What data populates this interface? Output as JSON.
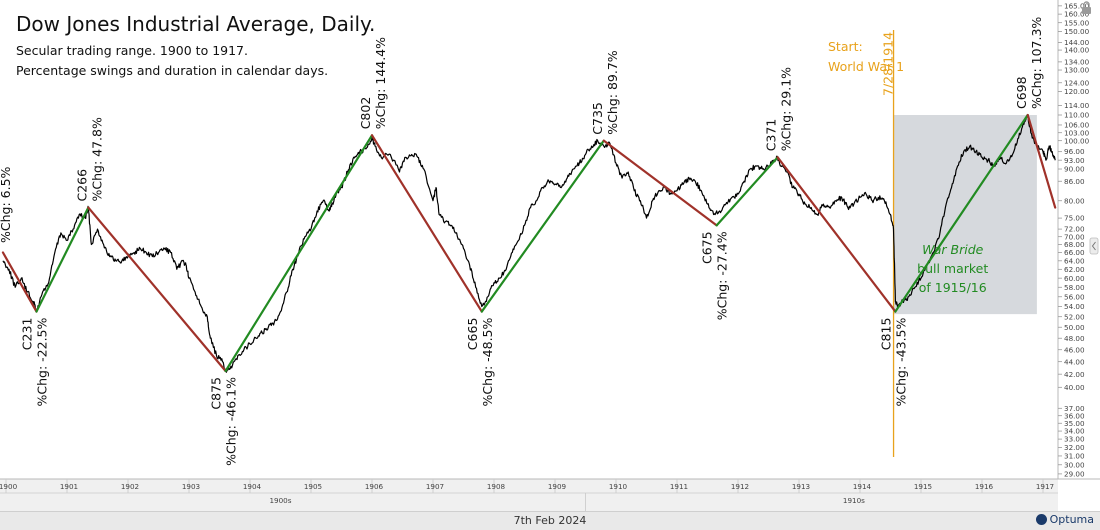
{
  "header": {
    "title": "Dow Jones Industrial Average, Daily.",
    "subtitle_lines": [
      "Secular trading range. 1900 to 1917.",
      "Percentage swings and duration in calendar days."
    ]
  },
  "footer": {
    "date": "7th Feb 2024",
    "logo": "Optuma"
  },
  "colors": {
    "price": "#000000",
    "up_swing": "#228B22",
    "down_swing": "#A0322A",
    "event": "#E8A21C",
    "box": "#C8CCD2",
    "annotation_green": "#228B22"
  },
  "chart_data": {
    "type": "line",
    "scale": "log",
    "ylim": [
      29,
      165
    ],
    "xlim": [
      1900.0,
      1917.25
    ],
    "y_ticks": [
      29,
      30,
      31,
      32,
      33,
      34,
      35,
      36,
      37,
      40,
      42,
      44,
      46,
      48,
      50,
      52,
      54,
      56,
      58,
      60,
      62,
      64,
      66,
      68,
      70,
      72,
      75,
      80,
      86,
      90,
      93,
      96,
      100,
      103,
      106,
      110,
      114,
      120,
      124,
      130,
      134,
      140,
      144,
      150,
      155,
      160,
      165
    ],
    "x_tick_labels": [
      "1900",
      "1901",
      "1902",
      "1903",
      "1904",
      "1905",
      "1906",
      "1907",
      "1908",
      "1909",
      "1910",
      "1911",
      "1912",
      "1913",
      "1914",
      "1915",
      "1916",
      "1917"
    ],
    "x_tick_values": [
      1900,
      1901,
      1902,
      1903,
      1904,
      1905,
      1906,
      1907,
      1908,
      1909,
      1910,
      1911,
      1912,
      1913,
      1914,
      1915,
      1916,
      1917
    ],
    "decade_labels": [
      {
        "label": "1900s",
        "x": 1904.5
      },
      {
        "label": "1910s",
        "x": 1913.9
      }
    ],
    "decade_divider": 1909.5,
    "series": [
      {
        "kind": "price",
        "points": [
          [
            1899.95,
            64
          ],
          [
            1900.05,
            62
          ],
          [
            1900.15,
            58
          ],
          [
            1900.25,
            60
          ],
          [
            1900.35,
            57
          ],
          [
            1900.45,
            55
          ],
          [
            1900.5,
            53
          ],
          [
            1900.6,
            57
          ],
          [
            1900.7,
            59
          ],
          [
            1900.8,
            66
          ],
          [
            1900.9,
            71
          ],
          [
            1901.0,
            69
          ],
          [
            1901.1,
            72
          ],
          [
            1901.2,
            76
          ],
          [
            1901.3,
            75
          ],
          [
            1901.35,
            78
          ],
          [
            1901.4,
            68
          ],
          [
            1901.5,
            72
          ],
          [
            1901.6,
            68
          ],
          [
            1901.7,
            65
          ],
          [
            1901.8,
            64
          ],
          [
            1901.9,
            64
          ],
          [
            1902.0,
            65
          ],
          [
            1902.1,
            66
          ],
          [
            1902.2,
            67
          ],
          [
            1902.3,
            66
          ],
          [
            1902.4,
            65
          ],
          [
            1902.5,
            66
          ],
          [
            1902.6,
            67
          ],
          [
            1902.7,
            66
          ],
          [
            1902.8,
            62
          ],
          [
            1902.9,
            64
          ],
          [
            1902.95,
            63
          ],
          [
            1903.0,
            60
          ],
          [
            1903.1,
            57
          ],
          [
            1903.2,
            54
          ],
          [
            1903.3,
            52
          ],
          [
            1903.35,
            48
          ],
          [
            1903.45,
            45
          ],
          [
            1903.55,
            44
          ],
          [
            1903.6,
            42.5
          ],
          [
            1903.7,
            43
          ],
          [
            1903.8,
            45
          ],
          [
            1903.9,
            46
          ],
          [
            1904.0,
            47
          ],
          [
            1904.1,
            48
          ],
          [
            1904.2,
            49
          ],
          [
            1904.3,
            50
          ],
          [
            1904.4,
            51
          ],
          [
            1904.5,
            53
          ],
          [
            1904.6,
            57
          ],
          [
            1904.7,
            62
          ],
          [
            1904.8,
            66
          ],
          [
            1904.9,
            70
          ],
          [
            1905.0,
            72
          ],
          [
            1905.1,
            77
          ],
          [
            1905.2,
            80
          ],
          [
            1905.3,
            77
          ],
          [
            1905.35,
            79
          ],
          [
            1905.4,
            81
          ],
          [
            1905.5,
            84
          ],
          [
            1905.6,
            89
          ],
          [
            1905.7,
            94
          ],
          [
            1905.8,
            96
          ],
          [
            1905.9,
            97
          ],
          [
            1906.0,
            101
          ],
          [
            1906.05,
            98
          ],
          [
            1906.15,
            94
          ],
          [
            1906.3,
            95
          ],
          [
            1906.45,
            89
          ],
          [
            1906.55,
            94
          ],
          [
            1906.65,
            95
          ],
          [
            1906.75,
            94
          ],
          [
            1906.85,
            90
          ],
          [
            1907.0,
            80
          ],
          [
            1907.05,
            84
          ],
          [
            1907.1,
            76
          ],
          [
            1907.2,
            74
          ],
          [
            1907.3,
            73
          ],
          [
            1907.4,
            70
          ],
          [
            1907.5,
            67
          ],
          [
            1907.6,
            63
          ],
          [
            1907.7,
            58
          ],
          [
            1907.8,
            54
          ],
          [
            1907.9,
            56
          ],
          [
            1908.0,
            59
          ],
          [
            1908.1,
            60
          ],
          [
            1908.2,
            62
          ],
          [
            1908.3,
            66
          ],
          [
            1908.4,
            69
          ],
          [
            1908.5,
            73
          ],
          [
            1908.6,
            78
          ],
          [
            1908.7,
            80
          ],
          [
            1908.8,
            84
          ],
          [
            1908.9,
            86
          ],
          [
            1909.0,
            85
          ],
          [
            1909.1,
            84
          ],
          [
            1909.2,
            87
          ],
          [
            1909.3,
            90
          ],
          [
            1909.4,
            92
          ],
          [
            1909.5,
            95
          ],
          [
            1909.6,
            98
          ],
          [
            1909.7,
            100
          ],
          [
            1909.8,
            98
          ],
          [
            1909.9,
            99
          ],
          [
            1910.0,
            92
          ],
          [
            1910.1,
            87
          ],
          [
            1910.2,
            89
          ],
          [
            1910.3,
            83
          ],
          [
            1910.4,
            80
          ],
          [
            1910.5,
            75
          ],
          [
            1910.6,
            80
          ],
          [
            1910.7,
            83
          ],
          [
            1910.8,
            84
          ],
          [
            1910.9,
            82
          ],
          [
            1911.0,
            83
          ],
          [
            1911.1,
            85
          ],
          [
            1911.2,
            87
          ],
          [
            1911.3,
            86
          ],
          [
            1911.4,
            83
          ],
          [
            1911.5,
            79
          ],
          [
            1911.6,
            76
          ],
          [
            1911.7,
            77
          ],
          [
            1911.8,
            79
          ],
          [
            1911.9,
            81
          ],
          [
            1912.0,
            82
          ],
          [
            1912.1,
            86
          ],
          [
            1912.2,
            90
          ],
          [
            1912.3,
            91
          ],
          [
            1912.4,
            90
          ],
          [
            1912.5,
            91
          ],
          [
            1912.6,
            93
          ],
          [
            1912.65,
            94
          ],
          [
            1912.7,
            91
          ],
          [
            1912.8,
            89
          ],
          [
            1912.9,
            84
          ],
          [
            1913.0,
            82
          ],
          [
            1913.1,
            79
          ],
          [
            1913.2,
            78
          ],
          [
            1913.3,
            76
          ],
          [
            1913.4,
            79
          ],
          [
            1913.5,
            78
          ],
          [
            1913.6,
            80
          ],
          [
            1913.7,
            81
          ],
          [
            1913.8,
            78
          ],
          [
            1913.9,
            79
          ],
          [
            1914.0,
            81
          ],
          [
            1914.1,
            82
          ],
          [
            1914.2,
            80
          ],
          [
            1914.3,
            81
          ],
          [
            1914.4,
            80
          ],
          [
            1914.5,
            76
          ],
          [
            1914.55,
            72
          ],
          [
            1914.58,
            55
          ],
          [
            1914.62,
            54
          ],
          [
            1914.7,
            55
          ],
          [
            1914.8,
            56
          ],
          [
            1914.9,
            58
          ],
          [
            1915.0,
            60
          ],
          [
            1915.1,
            63
          ],
          [
            1915.2,
            66
          ],
          [
            1915.3,
            70
          ],
          [
            1915.4,
            78
          ],
          [
            1915.5,
            84
          ],
          [
            1915.6,
            91
          ],
          [
            1915.7,
            96
          ],
          [
            1915.8,
            98
          ],
          [
            1915.9,
            96
          ],
          [
            1916.0,
            94
          ],
          [
            1916.1,
            93
          ],
          [
            1916.2,
            91
          ],
          [
            1916.3,
            94
          ],
          [
            1916.4,
            92
          ],
          [
            1916.5,
            95
          ],
          [
            1916.6,
            101
          ],
          [
            1916.7,
            108
          ],
          [
            1916.75,
            110
          ],
          [
            1916.8,
            103
          ],
          [
            1916.9,
            98
          ],
          [
            1917.0,
            96
          ],
          [
            1917.05,
            93
          ],
          [
            1917.1,
            98
          ],
          [
            1917.15,
            96
          ],
          [
            1917.2,
            93
          ]
        ]
      },
      {
        "kind": "swing",
        "direction": "down",
        "points": [
          [
            1899.95,
            66
          ],
          [
            1900.5,
            53
          ]
        ]
      },
      {
        "kind": "swing",
        "direction": "up",
        "points": [
          [
            1900.5,
            53
          ],
          [
            1901.35,
            78
          ]
        ]
      },
      {
        "kind": "swing",
        "direction": "down",
        "points": [
          [
            1901.35,
            78
          ],
          [
            1903.6,
            42.5
          ]
        ]
      },
      {
        "kind": "swing",
        "direction": "up",
        "points": [
          [
            1903.6,
            42.5
          ],
          [
            1906.0,
            102
          ]
        ]
      },
      {
        "kind": "swing",
        "direction": "down",
        "points": [
          [
            1906.0,
            102
          ],
          [
            1907.8,
            53
          ]
        ]
      },
      {
        "kind": "swing",
        "direction": "up",
        "points": [
          [
            1907.8,
            53
          ],
          [
            1909.8,
            100
          ]
        ]
      },
      {
        "kind": "swing",
        "direction": "down",
        "points": [
          [
            1909.8,
            100
          ],
          [
            1911.65,
            73
          ]
        ]
      },
      {
        "kind": "swing",
        "direction": "up",
        "points": [
          [
            1911.65,
            73
          ],
          [
            1912.65,
            94
          ]
        ]
      },
      {
        "kind": "swing",
        "direction": "down",
        "points": [
          [
            1912.65,
            94
          ],
          [
            1914.58,
            53
          ]
        ]
      },
      {
        "kind": "swing",
        "direction": "up",
        "points": [
          [
            1914.58,
            53
          ],
          [
            1916.75,
            110
          ]
        ]
      },
      {
        "kind": "swing",
        "direction": "down",
        "points": [
          [
            1916.75,
            110
          ],
          [
            1917.2,
            78
          ]
        ]
      }
    ],
    "event_line": {
      "x": 1914.55,
      "label": "7/28/1914",
      "start_label_1": "Start:",
      "start_label_2": "World War 1"
    },
    "highlight_box": {
      "x0": 1914.55,
      "x1": 1916.9,
      "y0": 52.5,
      "y1": 110,
      "text": [
        "War Bride",
        "bull market",
        "of 1915/16"
      ]
    },
    "swing_labels": [
      {
        "x": 1899.98,
        "y": 66,
        "pos": "above",
        "text": "%Chg: 6.5%"
      },
      {
        "x": 1900.5,
        "y": 53,
        "pos": "below",
        "text": "C231"
      },
      {
        "x": 1900.5,
        "y": 53,
        "pos": "below2",
        "text": "%Chg: -22.5%"
      },
      {
        "x": 1901.35,
        "y": 78,
        "pos": "above2",
        "text": "C266"
      },
      {
        "x": 1901.35,
        "y": 78,
        "pos": "above",
        "text": "%Chg: 47.8%"
      },
      {
        "x": 1903.6,
        "y": 42.5,
        "pos": "below",
        "text": "C875"
      },
      {
        "x": 1903.6,
        "y": 42.5,
        "pos": "below2",
        "text": "%Chg: -46.1%"
      },
      {
        "x": 1906.0,
        "y": 102,
        "pos": "above2",
        "text": "C802"
      },
      {
        "x": 1906.0,
        "y": 102,
        "pos": "above",
        "text": "%Chg: 144.4%"
      },
      {
        "x": 1907.8,
        "y": 53,
        "pos": "below",
        "text": "C665"
      },
      {
        "x": 1907.8,
        "y": 53,
        "pos": "below2",
        "text": "%Chg: -48.5%"
      },
      {
        "x": 1909.8,
        "y": 100,
        "pos": "above2",
        "text": "C735"
      },
      {
        "x": 1909.8,
        "y": 100,
        "pos": "above",
        "text": "%Chg: 89.7%"
      },
      {
        "x": 1911.65,
        "y": 73,
        "pos": "below",
        "text": "C675"
      },
      {
        "x": 1911.65,
        "y": 73,
        "pos": "below2",
        "text": "%Chg: -27.4%"
      },
      {
        "x": 1912.65,
        "y": 94,
        "pos": "above2",
        "text": "C371"
      },
      {
        "x": 1912.65,
        "y": 94,
        "pos": "above",
        "text": "%Chg: 29.1%"
      },
      {
        "x": 1914.58,
        "y": 53,
        "pos": "below",
        "text": "C815"
      },
      {
        "x": 1914.58,
        "y": 53,
        "pos": "below2",
        "text": "%Chg: -43.5%"
      },
      {
        "x": 1916.75,
        "y": 110,
        "pos": "above2",
        "text": "C698"
      },
      {
        "x": 1916.75,
        "y": 110,
        "pos": "above",
        "text": "%Chg: 107.3%"
      }
    ]
  }
}
